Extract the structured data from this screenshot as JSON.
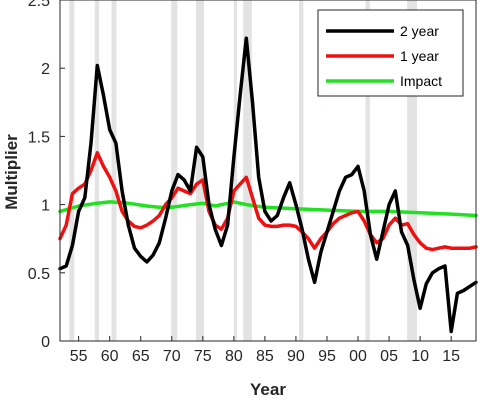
{
  "chart_data": {
    "type": "line",
    "title": "",
    "xlabel": "Year",
    "ylabel": "Multiplier",
    "xlim": [
      1952,
      2019
    ],
    "ylim": [
      0,
      2.5
    ],
    "x_ticks": [
      1955,
      1960,
      1965,
      1970,
      1975,
      1980,
      1985,
      1990,
      1995,
      2000,
      2005,
      2010,
      2015
    ],
    "x_tick_labels": [
      "55",
      "60",
      "65",
      "70",
      "75",
      "80",
      "85",
      "90",
      "95",
      "00",
      "05",
      "10",
      "15"
    ],
    "y_ticks": [
      0,
      0.5,
      1,
      1.5,
      2,
      2.5
    ],
    "y_tick_labels": [
      "0",
      "0.5",
      "1",
      "1.5",
      "2",
      "2.5"
    ],
    "grid": false,
    "legend_position": "top-right",
    "recession_bands": [
      [
        1953.5,
        1954.3
      ],
      [
        1957.6,
        1958.3
      ],
      [
        1960.3,
        1961.1
      ],
      [
        1969.9,
        1970.9
      ],
      [
        1973.9,
        1975.2
      ],
      [
        1980.0,
        1980.5
      ],
      [
        1981.5,
        1982.9
      ],
      [
        1990.5,
        1991.2
      ],
      [
        2001.2,
        2001.9
      ],
      [
        2007.9,
        2009.5
      ]
    ],
    "colors": {
      "band": "#e3e3e3"
    },
    "series": [
      {
        "name": "2 year",
        "color": "#000000",
        "x": [
          1952,
          1953,
          1954,
          1955,
          1956,
          1957,
          1958,
          1959,
          1960,
          1961,
          1962,
          1963,
          1964,
          1965,
          1966,
          1967,
          1968,
          1969,
          1970,
          1971,
          1972,
          1973,
          1974,
          1975,
          1976,
          1977,
          1978,
          1979,
          1980,
          1981,
          1982,
          1983,
          1984,
          1985,
          1986,
          1987,
          1988,
          1989,
          1990,
          1991,
          1992,
          1993,
          1994,
          1995,
          1996,
          1997,
          1998,
          1999,
          2000,
          2001,
          2002,
          2003,
          2004,
          2005,
          2006,
          2007,
          2008,
          2009,
          2010,
          2011,
          2012,
          2013,
          2014,
          2015,
          2016,
          2017,
          2018,
          2019
        ],
        "y": [
          0.53,
          0.55,
          0.7,
          0.95,
          1.05,
          1.45,
          2.02,
          1.8,
          1.55,
          1.45,
          1.1,
          0.85,
          0.68,
          0.62,
          0.58,
          0.63,
          0.72,
          0.9,
          1.1,
          1.22,
          1.18,
          1.1,
          1.42,
          1.35,
          1.0,
          0.82,
          0.7,
          0.85,
          1.35,
          1.8,
          2.22,
          1.75,
          1.2,
          0.95,
          0.88,
          0.92,
          1.05,
          1.16,
          1.0,
          0.82,
          0.6,
          0.43,
          0.65,
          0.8,
          0.95,
          1.1,
          1.2,
          1.22,
          1.28,
          1.1,
          0.78,
          0.6,
          0.8,
          1.0,
          1.1,
          0.8,
          0.7,
          0.45,
          0.24,
          0.42,
          0.5,
          0.53,
          0.55,
          0.07,
          0.35,
          0.37,
          0.4,
          0.43
        ]
      },
      {
        "name": "1 year",
        "color": "#ee1111",
        "x": [
          1952,
          1953,
          1954,
          1955,
          1956,
          1957,
          1958,
          1959,
          1960,
          1961,
          1962,
          1963,
          1964,
          1965,
          1966,
          1967,
          1968,
          1969,
          1970,
          1971,
          1972,
          1973,
          1974,
          1975,
          1976,
          1977,
          1978,
          1979,
          1980,
          1981,
          1982,
          1983,
          1984,
          1985,
          1986,
          1987,
          1988,
          1989,
          1990,
          1991,
          1992,
          1993,
          1994,
          1995,
          1996,
          1997,
          1998,
          1999,
          2000,
          2001,
          2002,
          2003,
          2004,
          2005,
          2006,
          2007,
          2008,
          2009,
          2010,
          2011,
          2012,
          2013,
          2014,
          2015,
          2016,
          2017,
          2018,
          2019
        ],
        "y": [
          0.75,
          0.85,
          1.08,
          1.12,
          1.15,
          1.25,
          1.38,
          1.28,
          1.2,
          1.1,
          0.95,
          0.88,
          0.84,
          0.83,
          0.85,
          0.88,
          0.92,
          1.0,
          1.05,
          1.12,
          1.1,
          1.08,
          1.15,
          1.18,
          0.95,
          0.85,
          0.82,
          0.9,
          1.1,
          1.15,
          1.2,
          1.05,
          0.9,
          0.85,
          0.84,
          0.84,
          0.85,
          0.85,
          0.84,
          0.8,
          0.75,
          0.68,
          0.75,
          0.8,
          0.86,
          0.9,
          0.92,
          0.94,
          0.95,
          0.88,
          0.78,
          0.72,
          0.75,
          0.85,
          0.9,
          0.85,
          0.86,
          0.78,
          0.72,
          0.68,
          0.67,
          0.68,
          0.69,
          0.68,
          0.68,
          0.68,
          0.68,
          0.69
        ]
      },
      {
        "name": "Impact",
        "color": "#22e022",
        "x": [
          1952,
          1955,
          1958,
          1960,
          1963,
          1966,
          1968,
          1970,
          1973,
          1975,
          1977,
          1980,
          1982,
          1985,
          1990,
          1995,
          2000,
          2005,
          2010,
          2015,
          2019
        ],
        "y": [
          0.95,
          0.99,
          1.01,
          1.02,
          1.01,
          0.99,
          0.98,
          0.98,
          1.0,
          1.01,
          0.99,
          1.02,
          1.0,
          0.98,
          0.97,
          0.96,
          0.95,
          0.95,
          0.94,
          0.93,
          0.92
        ]
      }
    ]
  }
}
